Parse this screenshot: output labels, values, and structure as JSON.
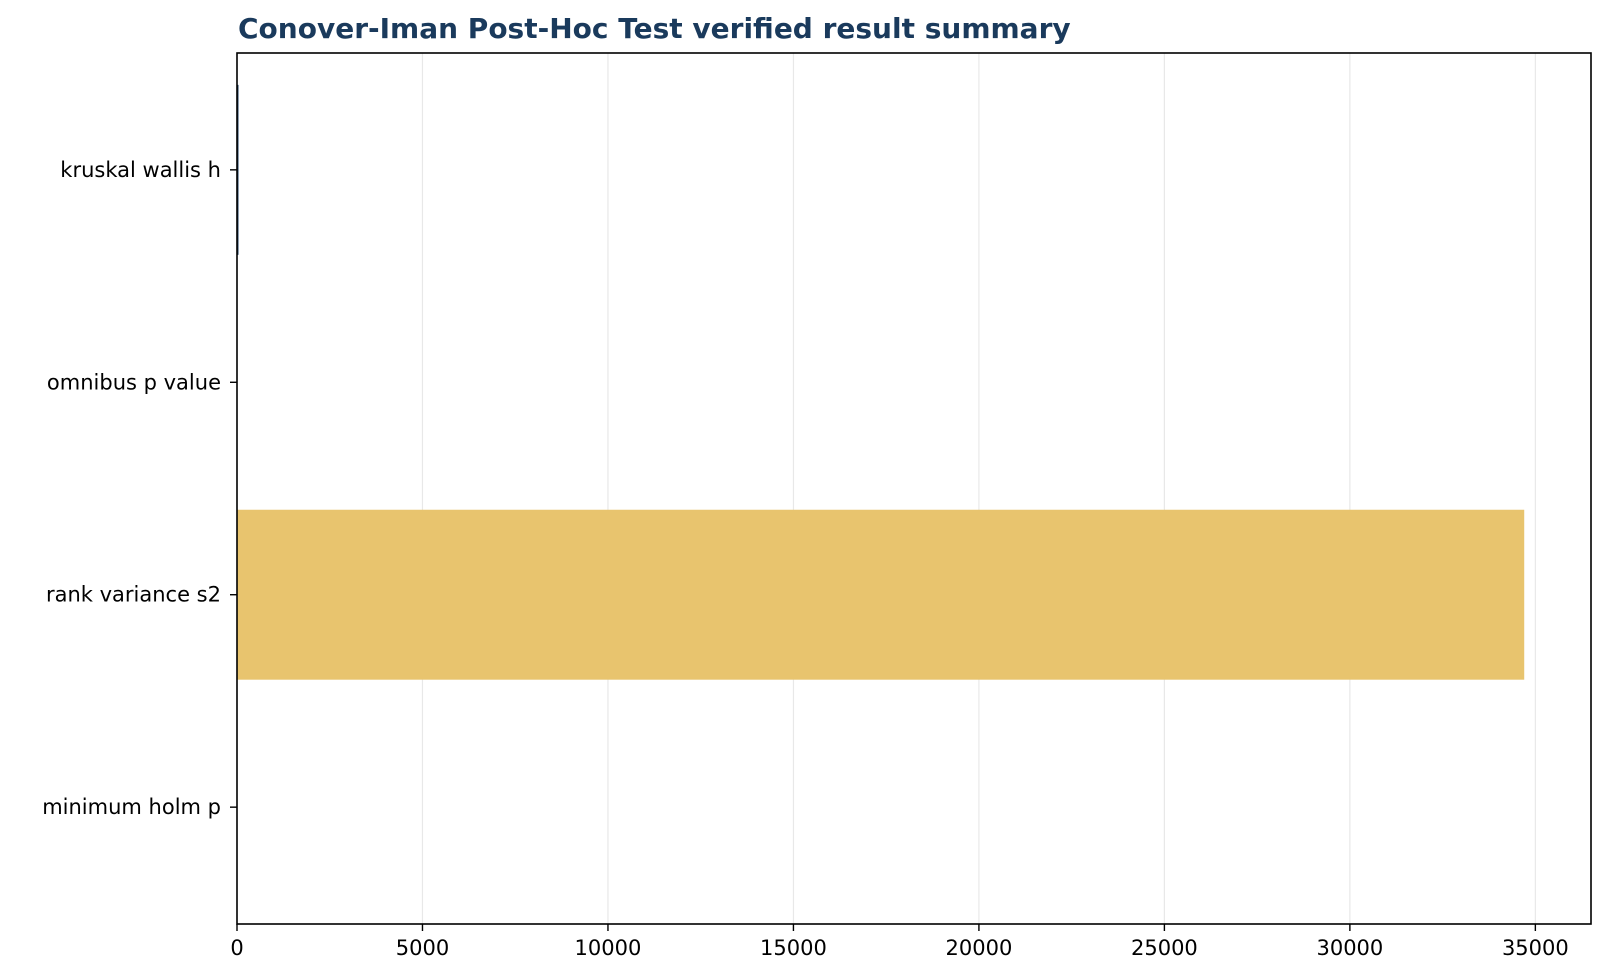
{
  "chart_data": {
    "type": "bar",
    "orientation": "horizontal",
    "title": "Conover-Iman Post-Hoc Test verified result summary",
    "xlabel": "",
    "ylabel": "",
    "categories": [
      "kruskal wallis h",
      "omnibus p value",
      "rank variance s2",
      "minimum holm p"
    ],
    "values": [
      6,
      0.0001,
      34700,
      0.0001
    ],
    "xlim": [
      0,
      36500
    ],
    "xticks": [
      0,
      5000,
      10000,
      15000,
      20000,
      25000,
      30000,
      35000
    ],
    "xtick_labels": [
      "0",
      "5000",
      "10000",
      "15000",
      "20000",
      "25000",
      "30000",
      "35000"
    ],
    "grid": "x",
    "colors": {
      "title": "#1a3a5c",
      "bars": [
        "#1a3a5c",
        "#1a3a5c",
        "#e8c46e",
        "#1a3a5c"
      ],
      "grid": "#e8e8e8",
      "axis": "#000000"
    }
  }
}
